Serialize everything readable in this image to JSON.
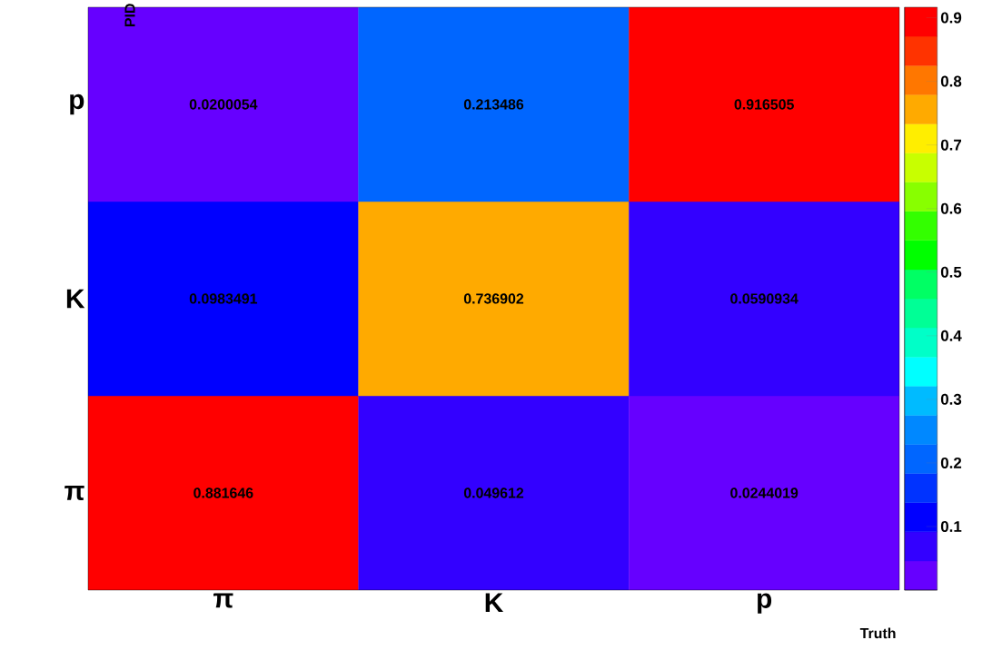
{
  "chart_data": {
    "type": "heatmap",
    "xlabel": "Truth",
    "ylabel": "PID",
    "categories": [
      "π",
      "K",
      "p"
    ],
    "y_categories": [
      "p",
      "K",
      "π"
    ],
    "cells": [
      [
        0.0200054,
        0.213486,
        0.916505
      ],
      [
        0.0983491,
        0.736902,
        0.0590934
      ],
      [
        0.881646,
        0.049612,
        0.0244019
      ]
    ],
    "data_labels": true,
    "clim": [
      0,
      0.9165
    ],
    "cticks": [
      0.1,
      0.2,
      0.3,
      0.4,
      0.5,
      0.6,
      0.7,
      0.8,
      0.9
    ]
  }
}
